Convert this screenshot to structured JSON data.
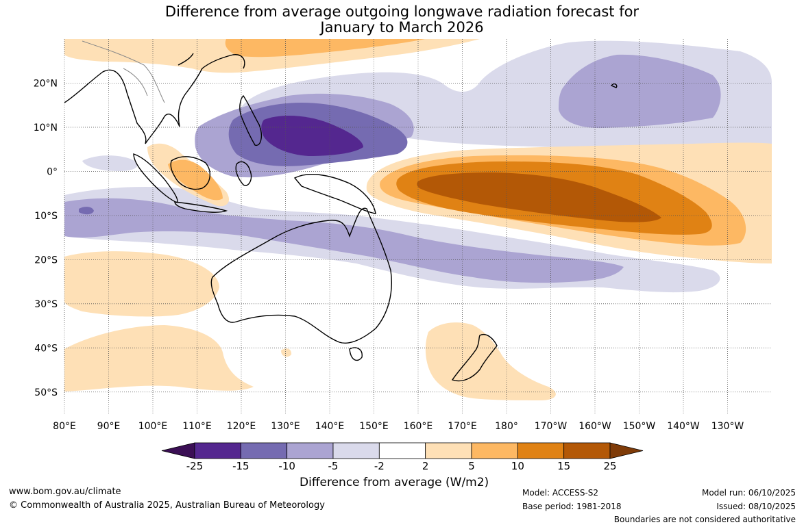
{
  "title": {
    "line1": "Difference from average outgoing longwave radiation forecast for",
    "line2": "January to March 2026"
  },
  "map": {
    "lat_labels": [
      "20°N",
      "10°N",
      "0°",
      "10°S",
      "20°S",
      "30°S",
      "40°S",
      "50°S"
    ],
    "lon_labels": [
      "80°E",
      "90°E",
      "100°E",
      "110°E",
      "120°E",
      "130°E",
      "140°E",
      "150°E",
      "160°E",
      "170°E",
      "180°",
      "170°W",
      "160°W",
      "150°W",
      "140°W",
      "130°W"
    ],
    "lat_range": [
      -55,
      30
    ],
    "lon_range": [
      80,
      240
    ]
  },
  "legend": {
    "colors": [
      "#3b0f55",
      "#54278f",
      "#756bb1",
      "#aba4d2",
      "#dadaeb",
      "#ffffff",
      "#fee0b6",
      "#fdb863",
      "#e08214",
      "#b35806",
      "#7f3b08"
    ],
    "tick_labels": [
      "-25",
      "-15",
      "-10",
      "-5",
      "-2",
      "2",
      "5",
      "10",
      "15",
      "25"
    ],
    "label": "Difference from average (W/m2)"
  },
  "footer": {
    "url": "www.bom.gov.au/climate",
    "copyright": "© Commonwealth of Australia 2025, Australian Bureau of Meteorology",
    "model": "Model: ACCESS-S2",
    "base_period": "Base period: 1981-2018",
    "model_run": "Model run: 06/10/2025",
    "issued": "Issued: 08/10/2025",
    "boundaries": "Boundaries are not considered authoritative"
  }
}
